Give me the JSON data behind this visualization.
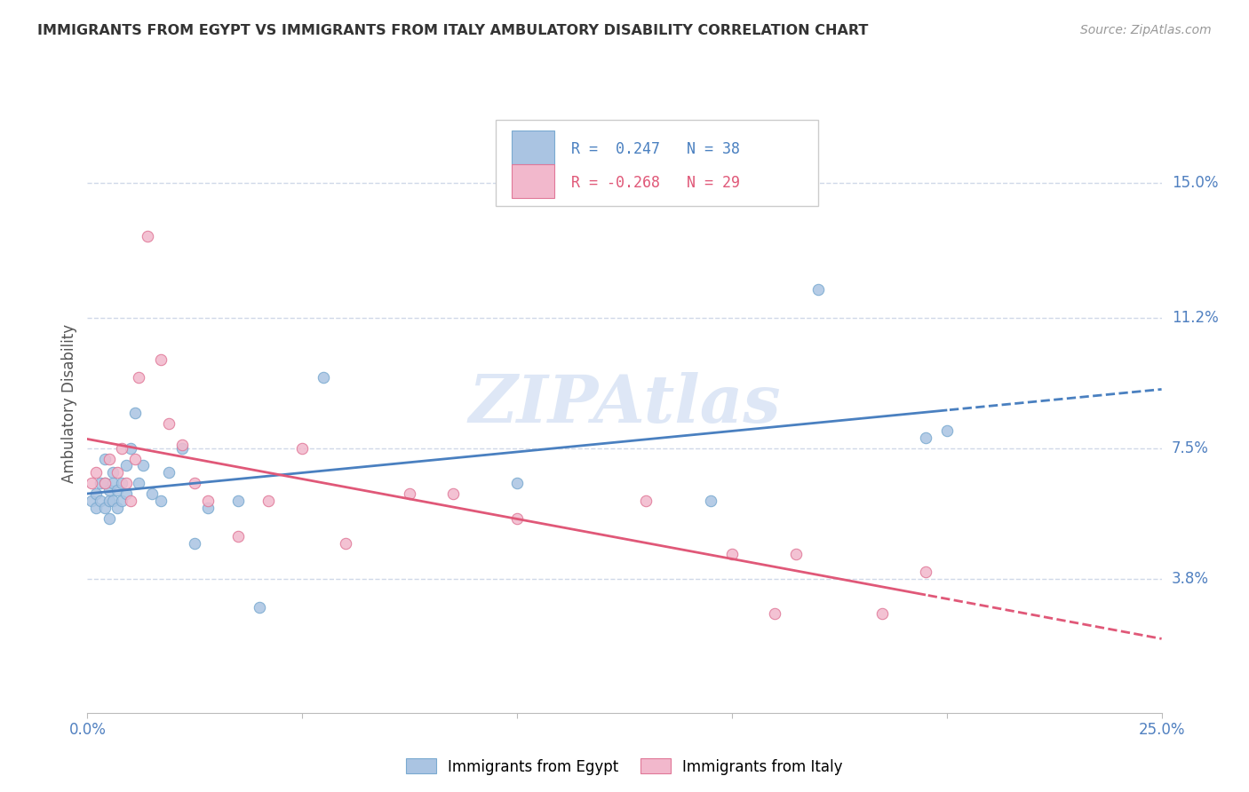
{
  "title": "IMMIGRANTS FROM EGYPT VS IMMIGRANTS FROM ITALY AMBULATORY DISABILITY CORRELATION CHART",
  "source": "Source: ZipAtlas.com",
  "ylabel": "Ambulatory Disability",
  "ytick_labels": [
    "15.0%",
    "11.2%",
    "7.5%",
    "3.8%"
  ],
  "ytick_values": [
    0.15,
    0.112,
    0.075,
    0.038
  ],
  "xlim": [
    0.0,
    0.25
  ],
  "ylim": [
    0.0,
    0.175
  ],
  "legend_egypt_R": " 0.247",
  "legend_egypt_N": "38",
  "legend_italy_R": "-0.268",
  "legend_italy_N": "29",
  "egypt_color": "#aac4e2",
  "egypt_edge": "#7aaad0",
  "italy_color": "#f2b8cc",
  "italy_edge": "#e07898",
  "trend_egypt_color": "#4a80c0",
  "trend_italy_color": "#e05878",
  "watermark_color": "#c8d8f0",
  "egypt_x": [
    0.001,
    0.002,
    0.002,
    0.003,
    0.003,
    0.004,
    0.004,
    0.004,
    0.005,
    0.005,
    0.005,
    0.006,
    0.006,
    0.006,
    0.007,
    0.007,
    0.008,
    0.008,
    0.009,
    0.009,
    0.01,
    0.011,
    0.012,
    0.013,
    0.015,
    0.017,
    0.019,
    0.022,
    0.025,
    0.028,
    0.035,
    0.04,
    0.055,
    0.1,
    0.145,
    0.17,
    0.195,
    0.2
  ],
  "egypt_y": [
    0.06,
    0.062,
    0.058,
    0.06,
    0.065,
    0.058,
    0.065,
    0.072,
    0.06,
    0.063,
    0.055,
    0.068,
    0.06,
    0.065,
    0.063,
    0.058,
    0.065,
    0.06,
    0.07,
    0.062,
    0.075,
    0.085,
    0.065,
    0.07,
    0.062,
    0.06,
    0.068,
    0.075,
    0.048,
    0.058,
    0.06,
    0.03,
    0.095,
    0.065,
    0.06,
    0.12,
    0.078,
    0.08
  ],
  "italy_x": [
    0.001,
    0.002,
    0.004,
    0.005,
    0.007,
    0.008,
    0.009,
    0.01,
    0.011,
    0.012,
    0.014,
    0.017,
    0.019,
    0.022,
    0.025,
    0.028,
    0.035,
    0.042,
    0.05,
    0.06,
    0.075,
    0.085,
    0.1,
    0.13,
    0.15,
    0.16,
    0.165,
    0.185,
    0.195
  ],
  "italy_y": [
    0.065,
    0.068,
    0.065,
    0.072,
    0.068,
    0.075,
    0.065,
    0.06,
    0.072,
    0.095,
    0.135,
    0.1,
    0.082,
    0.076,
    0.065,
    0.06,
    0.05,
    0.06,
    0.075,
    0.048,
    0.062,
    0.062,
    0.055,
    0.06,
    0.045,
    0.028,
    0.045,
    0.028,
    0.04
  ],
  "egypt_marker_size": 80,
  "italy_marker_size": 80,
  "grid_color": "#d0d8e8",
  "axis_color": "#5080c0",
  "text_color": "#333333",
  "background_color": "#ffffff"
}
